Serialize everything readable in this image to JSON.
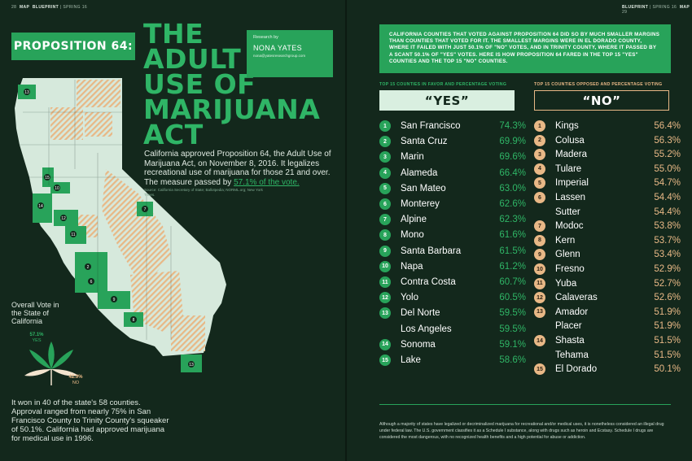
{
  "folio": {
    "left_page": "28",
    "left_section": "MAP",
    "left_pub": "BLUEPRINT",
    "left_issue": "SPRING 16",
    "right_pub": "BLUEPRINT",
    "right_issue": "SPRING 16",
    "right_section": "MAP",
    "right_page": "29"
  },
  "proposition_label": "PROPOSITION 64:",
  "headline": [
    "THE",
    "ADULT",
    "USE OF",
    "MARIJUANA",
    "ACT"
  ],
  "research": {
    "label": "Research by",
    "name": "NONA YATES",
    "email": "nona@yatesresearchgroup.com"
  },
  "intro": {
    "text": "California approved Proposition 64, the Adult Use of Marijuana Act, on November 8, 2016. It legalizes recreational use of marijuana for those 21 and over. The measure passed by ",
    "highlight": "57.1% of the vote."
  },
  "source": "Source: California Secretary of State; Ballotpedia; NORML.org; New York Times.",
  "overall": {
    "label": "Overall Vote in the State of California",
    "yes_pct": "57.1%",
    "yes_label": "YES",
    "no_pct": "42.9%",
    "no_label": "NO",
    "yes_value": 57.1,
    "no_value": 42.9
  },
  "bottom_note": "It won in 40 of the state's 58 counties. Approval ranged from nearly 75% in San Francisco County to Trinity County's squeaker of 50.1%. California had approved marijuana for medical use in 1996.",
  "intro_box": "California counties that voted against Proposition 64 did so by much smaller margins than counties that voted for it. The smallest margins were in El Dorado County, where it failed with just 50.1% of \"No\" votes, and in Trinity County, where it passed by a scant 50.1% of \"Yes\" votes. Here is how Proposition 64 fared in the top 15 \"Yes\" counties and the top 15 \"No\" counties.",
  "yes_column": {
    "heading": "Top 15 Counties in Favor and Percentage Voting",
    "title": "“YES”",
    "rows": [
      {
        "rank": "1",
        "county": "San Francisco",
        "pct": "74.3%"
      },
      {
        "rank": "2",
        "county": "Santa Cruz",
        "pct": "69.9%"
      },
      {
        "rank": "3",
        "county": "Marin",
        "pct": "69.6%"
      },
      {
        "rank": "4",
        "county": "Alameda",
        "pct": "66.4%"
      },
      {
        "rank": "5",
        "county": "San Mateo",
        "pct": "63.0%"
      },
      {
        "rank": "6",
        "county": "Monterey",
        "pct": "62.6%"
      },
      {
        "rank": "7",
        "county": "Alpine",
        "pct": "62.3%"
      },
      {
        "rank": "8",
        "county": "Mono",
        "pct": "61.6%"
      },
      {
        "rank": "9",
        "county": "Santa Barbara",
        "pct": "61.5%"
      },
      {
        "rank": "10",
        "county": "Napa",
        "pct": "61.2%"
      },
      {
        "rank": "11",
        "county": "Contra Costa",
        "pct": "60.7%"
      },
      {
        "rank": "12",
        "county": "Yolo",
        "pct": "60.5%"
      },
      {
        "rank": "13",
        "county": "Del Norte",
        "pct": "59.5%"
      },
      {
        "rank": "",
        "county": "Los Angeles",
        "pct": "59.5%"
      },
      {
        "rank": "14",
        "county": "Sonoma",
        "pct": "59.1%"
      },
      {
        "rank": "15",
        "county": "Lake",
        "pct": "58.6%"
      }
    ]
  },
  "no_column": {
    "heading": "Top 15 Counties Opposed and Percentage Voting",
    "title": "“NO”",
    "rows": [
      {
        "rank": "1",
        "county": "Kings",
        "pct": "56.4%"
      },
      {
        "rank": "2",
        "county": "Colusa",
        "pct": "56.3%"
      },
      {
        "rank": "3",
        "county": "Madera",
        "pct": "55.2%"
      },
      {
        "rank": "4",
        "county": "Tulare",
        "pct": "55.0%"
      },
      {
        "rank": "5",
        "county": "Imperial",
        "pct": "54.7%"
      },
      {
        "rank": "6",
        "county": "Lassen",
        "pct": "54.4%"
      },
      {
        "rank": "",
        "county": "Sutter",
        "pct": "54.4%"
      },
      {
        "rank": "7",
        "county": "Modoc",
        "pct": "53.8%"
      },
      {
        "rank": "8",
        "county": "Kern",
        "pct": "53.7%"
      },
      {
        "rank": "9",
        "county": "Glenn",
        "pct": "53.4%"
      },
      {
        "rank": "10",
        "county": "Fresno",
        "pct": "52.9%"
      },
      {
        "rank": "11",
        "county": "Yuba",
        "pct": "52.7%"
      },
      {
        "rank": "12",
        "county": "Calaveras",
        "pct": "52.6%"
      },
      {
        "rank": "13",
        "county": "Amador",
        "pct": "51.9%"
      },
      {
        "rank": "",
        "county": "Placer",
        "pct": "51.9%"
      },
      {
        "rank": "14",
        "county": "Shasta",
        "pct": "51.5%"
      },
      {
        "rank": "",
        "county": "Tehama",
        "pct": "51.5%"
      },
      {
        "rank": "15",
        "county": "El Dorado",
        "pct": "50.1%"
      }
    ]
  },
  "footnote": "Although a majority of states have legalized or decriminalized marijuana for recreational and/or medical uses, it is nonetheless considered an illegal drug under federal law. The U.S. government classifies it as a Schedule I substance, along with drugs such as heroin and Ecstasy. Schedule I drugs are considered the most dangerous, with no recognized health benefits and a high potential for abuse or addiction.",
  "colors": {
    "background": "#13281c",
    "yes_green": "#28a35a",
    "no_tan": "#e8b886",
    "map_light": "#d6e9dc"
  },
  "map_markers": [
    "1",
    "2",
    "3",
    "4",
    "5",
    "6",
    "7",
    "8",
    "9",
    "10",
    "11",
    "12",
    "13",
    "14",
    "15"
  ]
}
